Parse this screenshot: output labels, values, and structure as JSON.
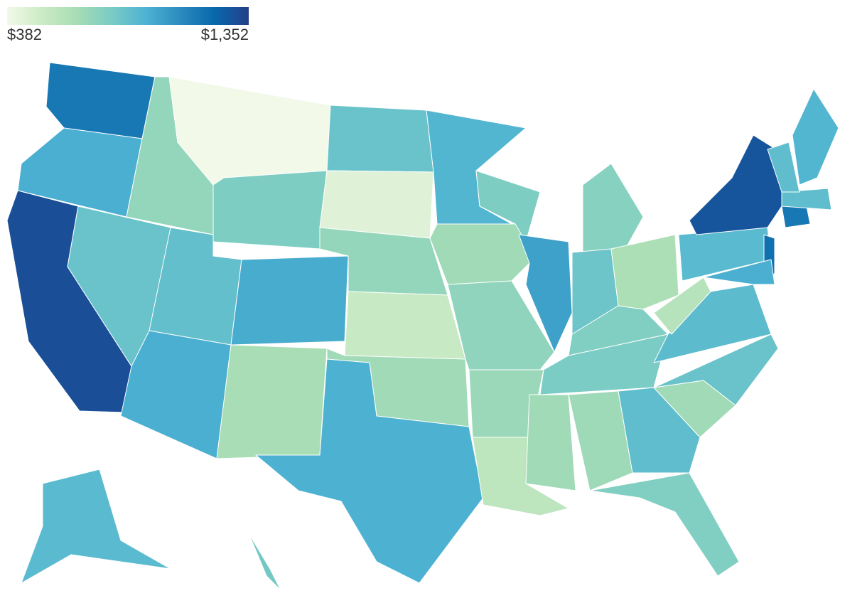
{
  "chart_data": {
    "type": "choropleth",
    "ticks": [
      {
        "value": 382,
        "label": "$382"
      },
      {
        "value": 1352,
        "label": "$1,352"
      }
    ],
    "colorscale": [
      "#f2f9e9",
      "#ccebc5",
      "#a8ddb5",
      "#7bccc4",
      "#4eb3d3",
      "#2b8cbe",
      "#0868ac",
      "#253f8a"
    ],
    "values": [
      1150,
      950,
      1300,
      850,
      720,
      382,
      790,
      870,
      950,
      960,
      660,
      850,
      450,
      720,
      540,
      680,
      940,
      920,
      680,
      730,
      700,
      580,
      790,
      1000,
      760,
      840,
      640,
      780,
      800,
      680,
      690,
      880,
      780,
      680,
      850,
      890,
      600,
      900,
      1280,
      1180,
      950,
      1150,
      880,
      880,
      920,
      900,
      820
    ]
  }
}
